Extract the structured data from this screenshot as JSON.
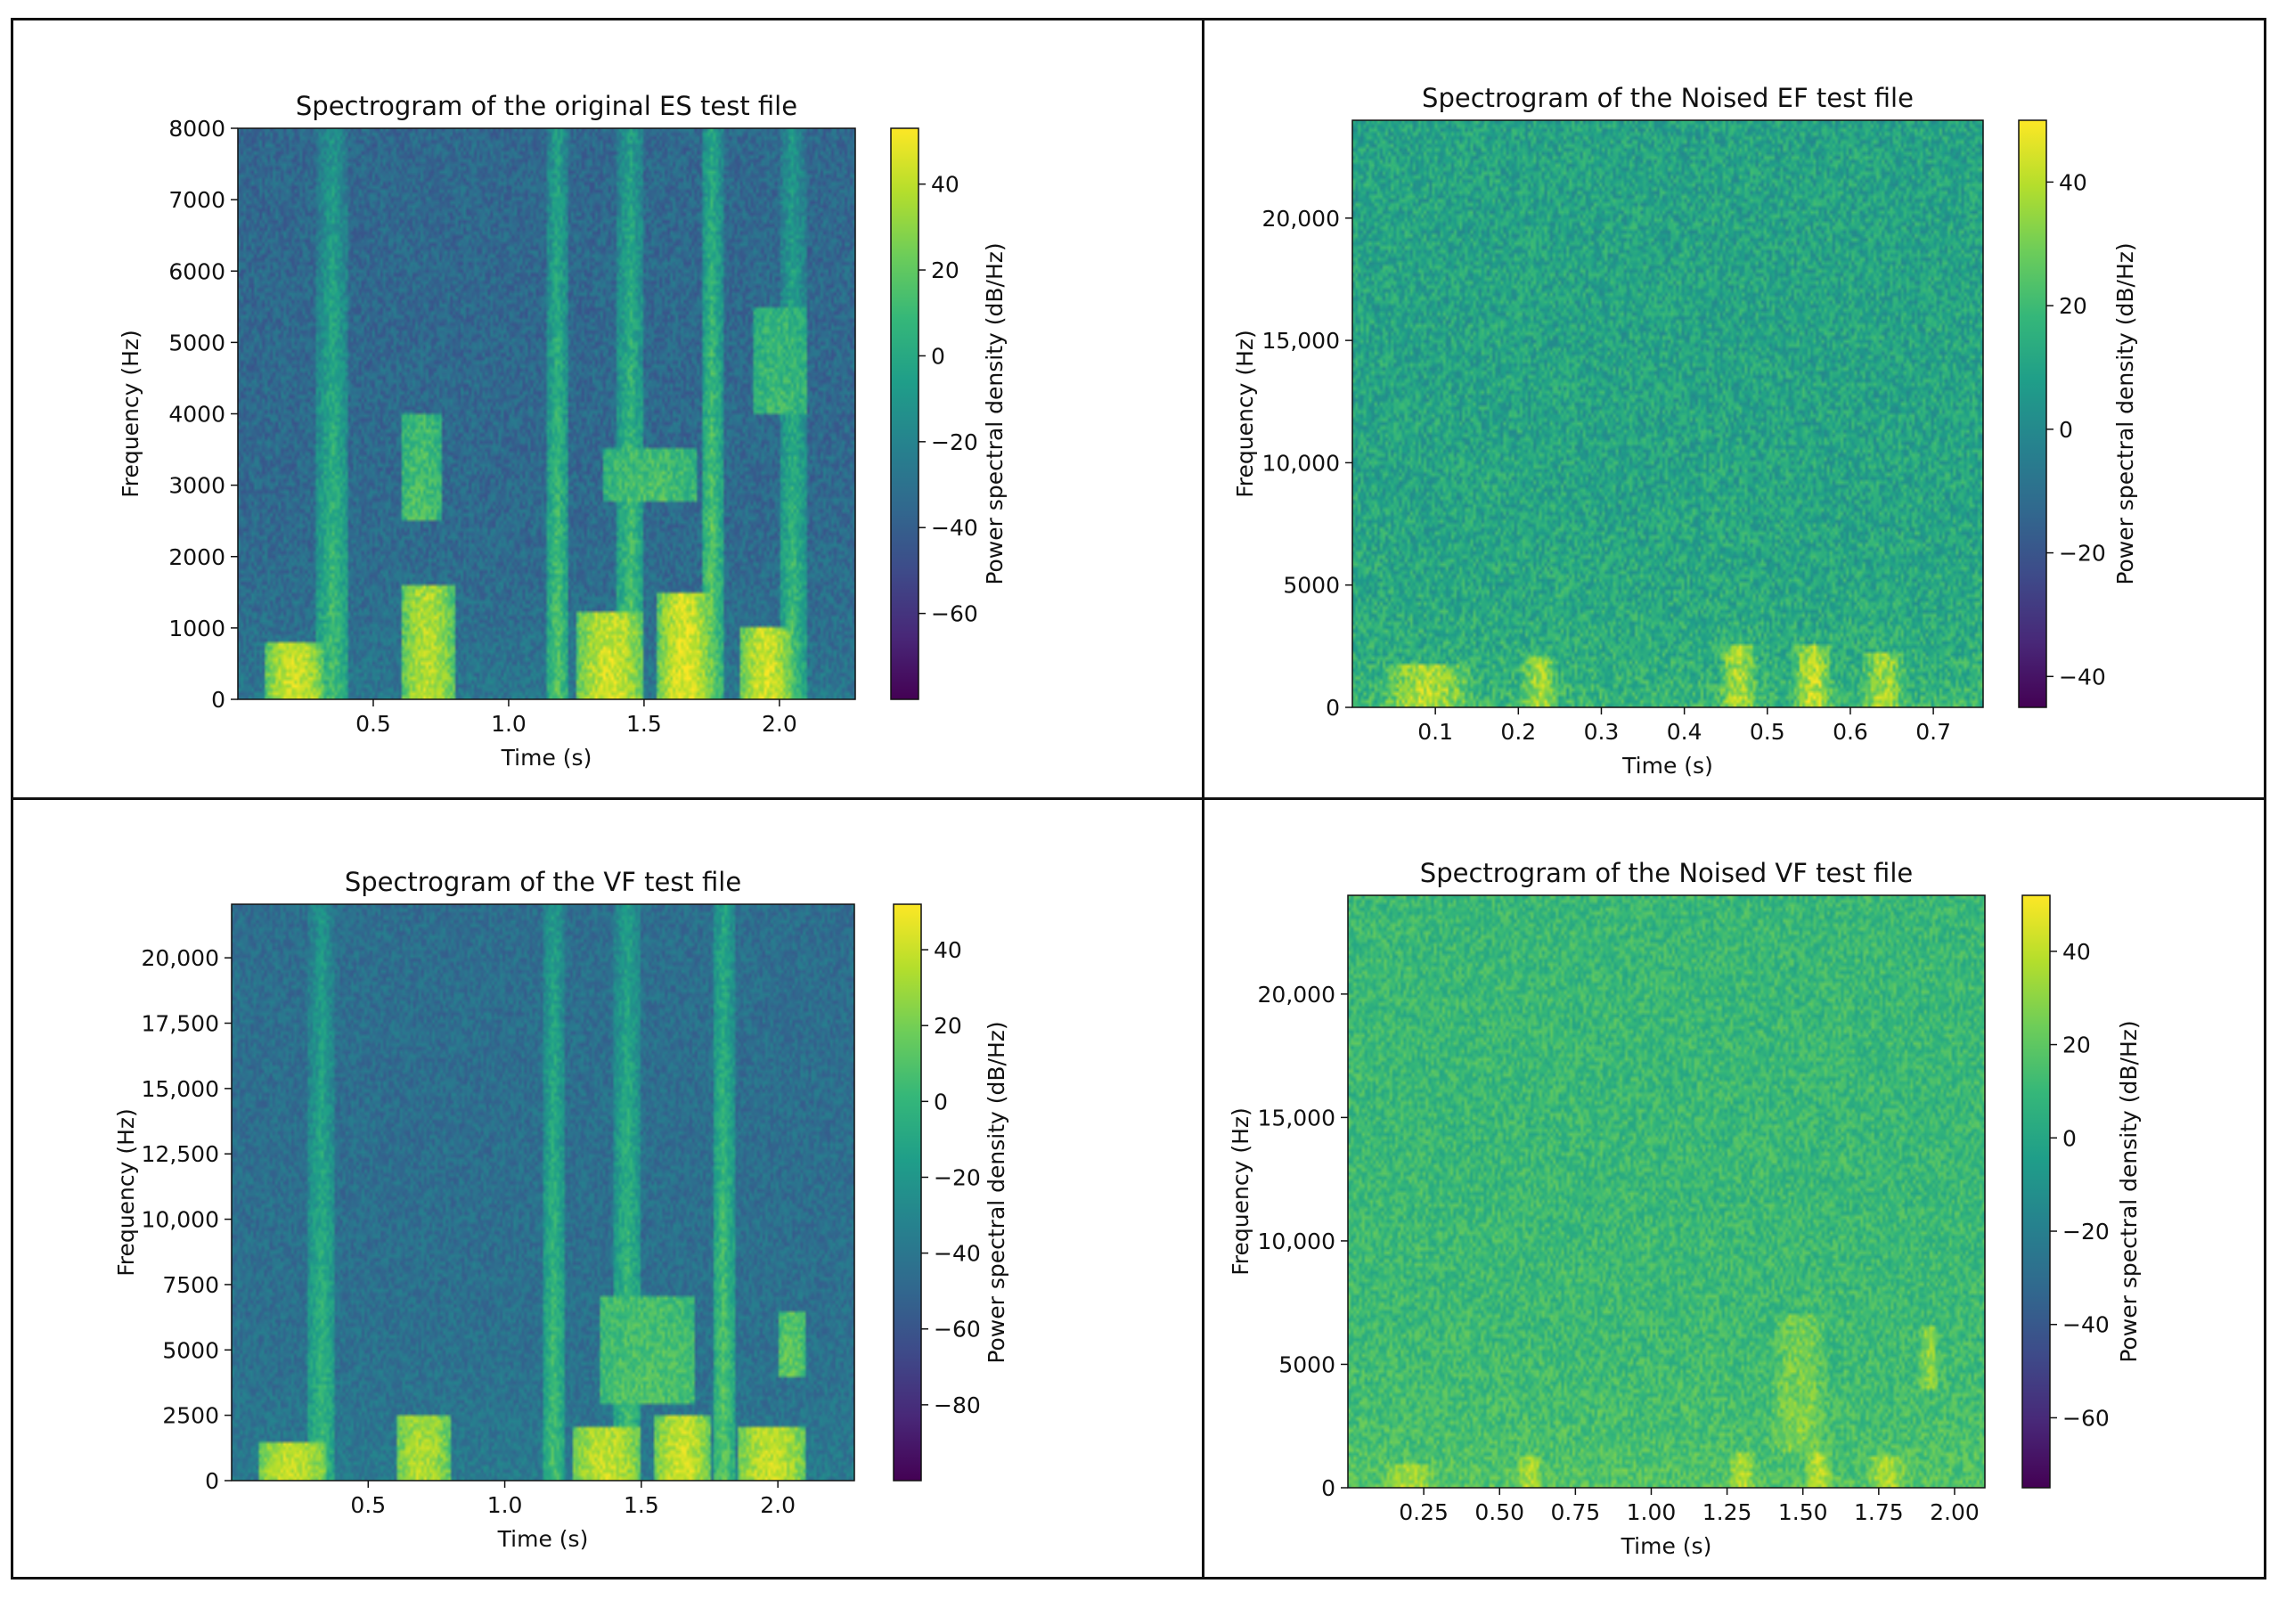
{
  "figure": {
    "colormap": "viridis",
    "colors": {
      "viridis_low": "#440154",
      "viridis_mid": "#21918c",
      "viridis_high": "#fde725",
      "border": "#111111"
    }
  },
  "chart_data": [
    {
      "type": "heatmap",
      "title": "Spectrogram of the original ES test file",
      "xlabel": "Time (s)",
      "ylabel": "Frequency (Hz)",
      "colorbar_label": "Power spectral density (dB/Hz)",
      "xlim": [
        0.0,
        2.28
      ],
      "ylim": [
        0,
        8000
      ],
      "x_ticks": [
        0.5,
        1.0,
        1.5,
        2.0
      ],
      "x_tick_labels": [
        "0.5",
        "1.0",
        "1.5",
        "2.0"
      ],
      "y_ticks": [
        0,
        1000,
        2000,
        3000,
        4000,
        5000,
        6000,
        7000,
        8000
      ],
      "y_tick_labels": [
        "0",
        "1000",
        "2000",
        "3000",
        "4000",
        "5000",
        "6000",
        "7000",
        "8000"
      ],
      "clim": [
        -80,
        53
      ],
      "cbar_ticks": [
        40,
        20,
        0,
        -20,
        -40,
        -60
      ],
      "cbar_tick_labels": [
        "40",
        "20",
        "0",
        "−20",
        "−40",
        "−60"
      ],
      "background_db": -35,
      "events": [
        {
          "t": [
            0.1,
            0.32
          ],
          "f": [
            0,
            800
          ],
          "db": 45
        },
        {
          "t": [
            0.6,
            0.8
          ],
          "f": [
            0,
            1600
          ],
          "db": 40
        },
        {
          "t": [
            1.25,
            1.5
          ],
          "f": [
            0,
            1200
          ],
          "db": 45
        },
        {
          "t": [
            1.55,
            1.75
          ],
          "f": [
            0,
            1500
          ],
          "db": 48
        },
        {
          "t": [
            1.85,
            2.05
          ],
          "f": [
            0,
            1000
          ],
          "db": 45
        },
        {
          "t": [
            0.6,
            0.75
          ],
          "f": [
            2500,
            4000
          ],
          "db": 15
        },
        {
          "t": [
            1.35,
            1.7
          ],
          "f": [
            2800,
            3500
          ],
          "db": 15
        },
        {
          "t": [
            1.9,
            2.1
          ],
          "f": [
            4000,
            5500
          ],
          "db": 10
        }
      ],
      "vertical_bands": [
        {
          "t": 0.35,
          "w": 0.06,
          "db": 15
        },
        {
          "t": 1.18,
          "w": 0.04,
          "db": 20
        },
        {
          "t": 1.45,
          "w": 0.05,
          "db": 20
        },
        {
          "t": 1.75,
          "w": 0.04,
          "db": 25
        },
        {
          "t": 2.05,
          "w": 0.05,
          "db": 15
        }
      ]
    },
    {
      "type": "heatmap",
      "title": "Spectrogram of the Noised EF test file",
      "xlabel": "Time (s)",
      "ylabel": "Frequency (Hz)",
      "colorbar_label": "Power spectral density (dB/Hz)",
      "xlim": [
        0.0,
        0.76
      ],
      "ylim": [
        0,
        24000
      ],
      "x_ticks": [
        0.1,
        0.2,
        0.3,
        0.4,
        0.5,
        0.6,
        0.7
      ],
      "x_tick_labels": [
        "0.1",
        "0.2",
        "0.3",
        "0.4",
        "0.5",
        "0.6",
        "0.7"
      ],
      "y_ticks": [
        0,
        5000,
        10000,
        15000,
        20000
      ],
      "y_tick_labels": [
        "0",
        "5000",
        "10,000",
        "15,000",
        "20,000"
      ],
      "clim": [
        -45,
        50
      ],
      "cbar_ticks": [
        40,
        20,
        0,
        -20,
        -40
      ],
      "cbar_tick_labels": [
        "40",
        "20",
        "0",
        "−20",
        "−40"
      ],
      "background_db": 10,
      "events": [
        {
          "t": [
            0.03,
            0.15
          ],
          "f": [
            0,
            1800
          ],
          "db": 40
        },
        {
          "t": [
            0.2,
            0.25
          ],
          "f": [
            0,
            2000
          ],
          "db": 38
        },
        {
          "t": [
            0.44,
            0.49
          ],
          "f": [
            0,
            2500
          ],
          "db": 40
        },
        {
          "t": [
            0.53,
            0.58
          ],
          "f": [
            0,
            2500
          ],
          "db": 42
        },
        {
          "t": [
            0.61,
            0.67
          ],
          "f": [
            0,
            2200
          ],
          "db": 38
        }
      ],
      "vertical_bands": []
    },
    {
      "type": "heatmap",
      "title": "Spectrogram of the VF test file",
      "xlabel": "Time (s)",
      "ylabel": "Frequency (Hz)",
      "colorbar_label": "Power spectral density (dB/Hz)",
      "xlim": [
        0.0,
        2.28
      ],
      "ylim": [
        0,
        22050
      ],
      "x_ticks": [
        0.5,
        1.0,
        1.5,
        2.0
      ],
      "x_tick_labels": [
        "0.5",
        "1.0",
        "1.5",
        "2.0"
      ],
      "y_ticks": [
        0,
        2500,
        5000,
        7500,
        10000,
        12500,
        15000,
        17500,
        20000
      ],
      "y_tick_labels": [
        "0",
        "2500",
        "5000",
        "7500",
        "10,000",
        "12,500",
        "15,000",
        "17,500",
        "20,000"
      ],
      "clim": [
        -100,
        52
      ],
      "cbar_ticks": [
        40,
        20,
        0,
        -20,
        -40,
        -60,
        -80
      ],
      "cbar_tick_labels": [
        "40",
        "20",
        "0",
        "−20",
        "−40",
        "−60",
        "−80"
      ],
      "background_db": -45,
      "events": [
        {
          "t": [
            0.1,
            0.35
          ],
          "f": [
            0,
            1500
          ],
          "db": 40
        },
        {
          "t": [
            0.6,
            0.8
          ],
          "f": [
            0,
            2500
          ],
          "db": 35
        },
        {
          "t": [
            1.25,
            1.5
          ],
          "f": [
            0,
            2000
          ],
          "db": 40
        },
        {
          "t": [
            1.55,
            1.75
          ],
          "f": [
            0,
            2500
          ],
          "db": 42
        },
        {
          "t": [
            1.85,
            2.1
          ],
          "f": [
            0,
            2000
          ],
          "db": 40
        },
        {
          "t": [
            1.35,
            1.7
          ],
          "f": [
            3000,
            7000
          ],
          "db": 10
        },
        {
          "t": [
            2.0,
            2.1
          ],
          "f": [
            4000,
            6500
          ],
          "db": 15
        }
      ],
      "vertical_bands": [
        {
          "t": 0.33,
          "w": 0.05,
          "db": 5
        },
        {
          "t": 1.18,
          "w": 0.04,
          "db": 10
        },
        {
          "t": 1.45,
          "w": 0.05,
          "db": 10
        },
        {
          "t": 1.8,
          "w": 0.04,
          "db": 15
        }
      ]
    },
    {
      "type": "heatmap",
      "title": "Spectrogram of the Noised VF test file",
      "xlabel": "Time (s)",
      "ylabel": "Frequency (Hz)",
      "colorbar_label": "Power spectral density (dB/Hz)",
      "xlim": [
        0.0,
        2.1
      ],
      "ylim": [
        0,
        24000
      ],
      "x_ticks": [
        0.25,
        0.5,
        0.75,
        1.0,
        1.25,
        1.5,
        1.75,
        2.0
      ],
      "x_tick_labels": [
        "0.25",
        "0.50",
        "0.75",
        "1.00",
        "1.25",
        "1.50",
        "1.75",
        "2.00"
      ],
      "y_ticks": [
        0,
        5000,
        10000,
        15000,
        20000
      ],
      "y_tick_labels": [
        "0",
        "5000",
        "10,000",
        "15,000",
        "20,000"
      ],
      "clim": [
        -75,
        52
      ],
      "cbar_ticks": [
        40,
        20,
        0,
        -20,
        -40,
        -60
      ],
      "cbar_tick_labels": [
        "40",
        "20",
        "0",
        "−20",
        "−40",
        "−60"
      ],
      "background_db": 10,
      "events": [
        {
          "t": [
            0.1,
            0.3
          ],
          "f": [
            0,
            900
          ],
          "db": 38
        },
        {
          "t": [
            0.55,
            0.65
          ],
          "f": [
            0,
            1200
          ],
          "db": 38
        },
        {
          "t": [
            1.25,
            1.35
          ],
          "f": [
            0,
            1500
          ],
          "db": 38
        },
        {
          "t": [
            1.5,
            1.6
          ],
          "f": [
            0,
            1500
          ],
          "db": 40
        },
        {
          "t": [
            1.7,
            1.85
          ],
          "f": [
            0,
            1200
          ],
          "db": 38
        },
        {
          "t": [
            1.38,
            1.6
          ],
          "f": [
            1500,
            7000
          ],
          "db": 28
        },
        {
          "t": [
            1.88,
            1.95
          ],
          "f": [
            4000,
            6500
          ],
          "db": 32
        }
      ],
      "vertical_bands": []
    }
  ]
}
